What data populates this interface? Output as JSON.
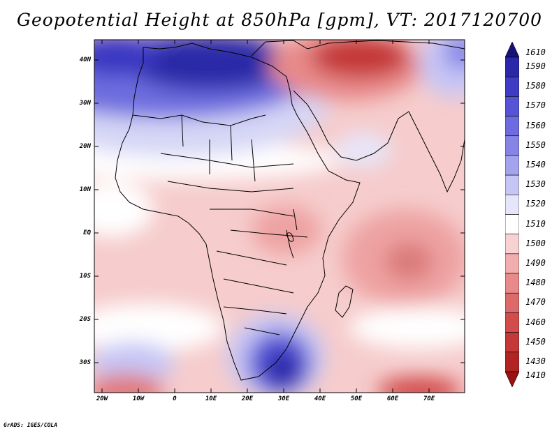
{
  "title": "Geopotential Height at 850hPa [gpm], VT: 2017120700",
  "footer": "GrADS: IGES/COLA",
  "map": {
    "lat_labels": [
      "40N",
      "30N",
      "20N",
      "10N",
      "EQ",
      "10S",
      "20S",
      "30S"
    ],
    "lon_labels": [
      "20W",
      "10W",
      "0",
      "10E",
      "20E",
      "30E",
      "40E",
      "50E",
      "60E",
      "70E"
    ]
  },
  "colorbar": {
    "levels": [
      "1610",
      "1590",
      "1580",
      "1570",
      "1560",
      "1550",
      "1540",
      "1530",
      "1520",
      "1510",
      "1500",
      "1490",
      "1480",
      "1470",
      "1460",
      "1450",
      "1430",
      "1410"
    ],
    "colors": [
      "#16127a",
      "#2a28a8",
      "#3e3cc4",
      "#5553d6",
      "#6c6be0",
      "#8685e6",
      "#a3a3ee",
      "#c6c6f6",
      "#e6e6fa",
      "#ffffff",
      "#f8d2d2",
      "#f2aeae",
      "#e88a8a",
      "#dc6a6a",
      "#d24c4c",
      "#c43838",
      "#b22424",
      "#9a1212"
    ]
  },
  "chart_data": {
    "type": "heatmap",
    "title": "Geopotential Height at 850hPa [gpm], VT: 2017120700",
    "variable": "Geopotential Height at 850hPa",
    "units": "gpm",
    "valid_time": "2017120700",
    "lon_range": [
      -22,
      80
    ],
    "lat_range": [
      -37,
      45
    ],
    "levels": [
      1410,
      1430,
      1450,
      1460,
      1470,
      1480,
      1490,
      1500,
      1510,
      1520,
      1530,
      1540,
      1550,
      1560,
      1570,
      1580,
      1590,
      1610
    ]
  }
}
